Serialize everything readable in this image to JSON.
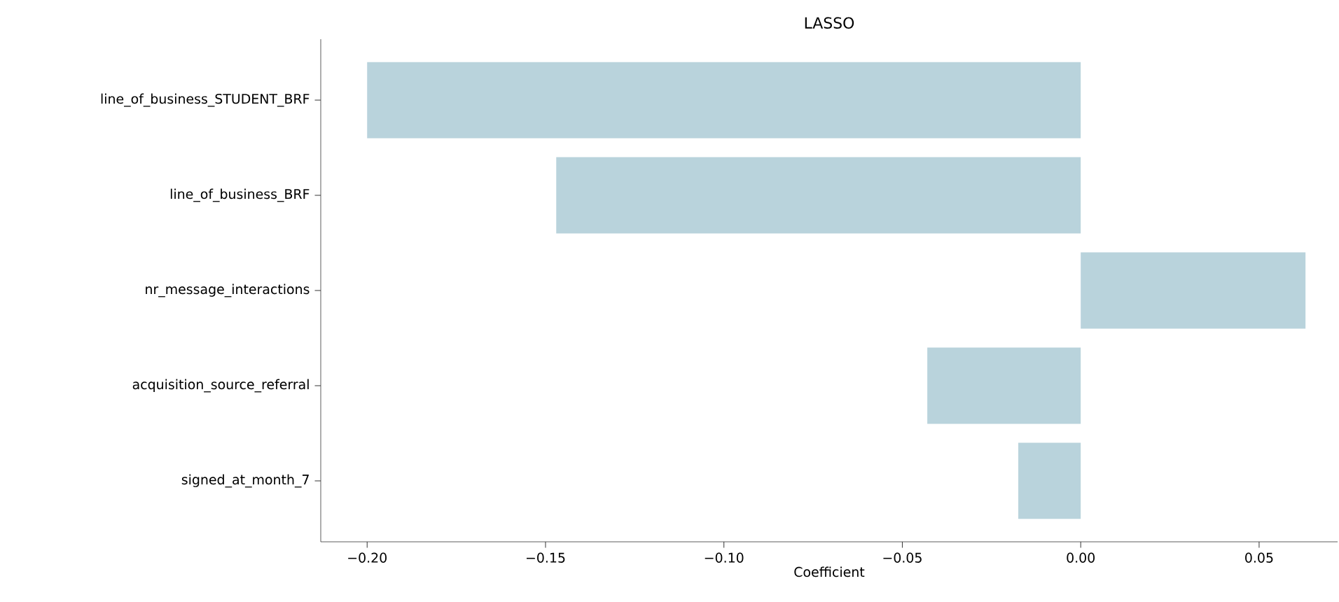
{
  "chart_data": {
    "type": "bar",
    "orientation": "horizontal",
    "title": "LASSO",
    "xlabel": "Coefficient",
    "categories": [
      "line_of_business_STUDENT_BRF",
      "line_of_business_BRF",
      "nr_message_interactions",
      "acquisition_source_referral",
      "signed_at_month_7"
    ],
    "values": [
      -0.2,
      -0.147,
      0.063,
      -0.043,
      -0.0175
    ],
    "color": "#b9d3dc",
    "xlim": [
      -0.213,
      0.072
    ],
    "xticks": [
      {
        "value": -0.2,
        "label": "−0.20"
      },
      {
        "value": -0.15,
        "label": "−0.15"
      },
      {
        "value": -0.1,
        "label": "−0.10"
      },
      {
        "value": -0.05,
        "label": "−0.05"
      },
      {
        "value": 0,
        "label": "0.00"
      },
      {
        "value": 0.05,
        "label": "0.05"
      }
    ]
  }
}
